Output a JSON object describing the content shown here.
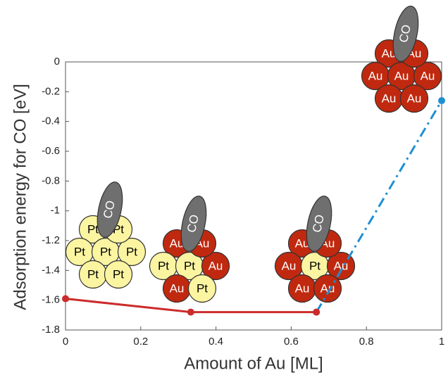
{
  "chart_data": {
    "type": "line",
    "x_label": "Amount of Au [ML]",
    "y_label": "Adsorption energy for CO [eV]",
    "x": [
      0,
      0.333,
      0.667,
      1
    ],
    "series": [
      {
        "color": "#1f8fd0",
        "style": "dash-dot",
        "values": [
          null,
          null,
          -1.68,
          -0.26
        ]
      },
      {
        "color": "#cc2b2b",
        "style": "solid",
        "values": [
          -1.59,
          -1.68,
          -1.68,
          null
        ]
      }
    ],
    "xlim": [
      0,
      1
    ],
    "xticks": [
      0,
      0.2,
      0.4,
      0.6,
      0.8,
      1
    ],
    "ylim": [
      -1.8,
      0
    ],
    "yticks": [
      0,
      -0.2,
      -0.4,
      -0.6,
      -0.8,
      -1,
      -1.2,
      -1.4,
      -1.6,
      -1.8
    ],
    "grid": false,
    "clusters": [
      {
        "atoms": [
          "Pt",
          "Pt",
          "Pt",
          "Pt",
          "Pt",
          "Pt",
          "Pt"
        ],
        "adsorbate": "CO"
      },
      {
        "atoms": [
          "Au",
          "Au",
          "Pt",
          "Pt",
          "Au",
          "Au",
          "Pt"
        ],
        "adsorbate": "CO"
      },
      {
        "atoms": [
          "Au",
          "Au",
          "Au",
          "Pt",
          "Au",
          "Au",
          "Au"
        ],
        "adsorbate": "CO"
      },
      {
        "atoms": [
          "Au",
          "Au",
          "Au",
          "Au",
          "Au",
          "Au",
          "Au"
        ],
        "adsorbate": "CO"
      }
    ]
  }
}
